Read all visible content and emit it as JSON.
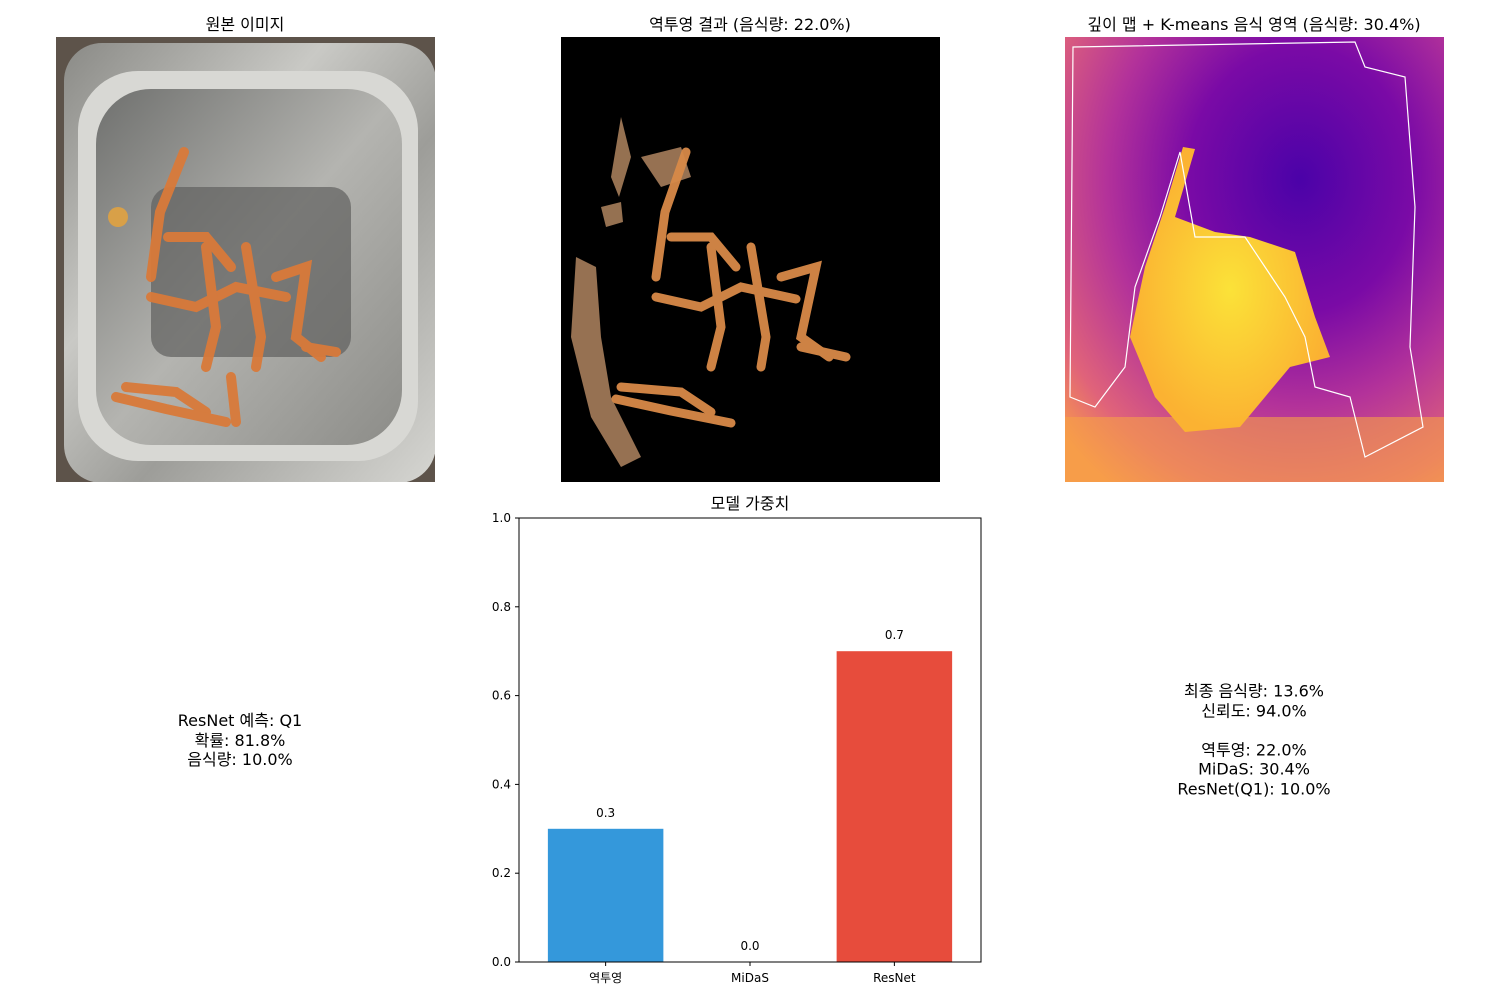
{
  "panels": {
    "original": {
      "title": "원본 이미지"
    },
    "backprojection": {
      "title": "역투영 결과 (음식량: 22.0%)"
    },
    "depth": {
      "title": "깊이 맵 + K-means 음식 영역 (음식량: 30.4%)"
    }
  },
  "resnet_info": {
    "lines": [
      "ResNet 예측: Q1",
      "확률: 81.8%",
      "음식량: 10.0%"
    ]
  },
  "final_info": {
    "lines": [
      "최종 음식량: 13.6%",
      "신뢰도: 94.0%",
      "",
      "역투영: 22.0%",
      "MiDaS: 30.4%",
      "ResNet(Q1): 10.0%"
    ]
  },
  "chart_data": {
    "type": "bar",
    "title": "모델 가중치",
    "categories": [
      "역투영",
      "MiDaS",
      "ResNet"
    ],
    "values": [
      0.3,
      0.0,
      0.7
    ],
    "value_labels": [
      "0.3",
      "0.0",
      "0.7"
    ],
    "colors": [
      "#3498db",
      "#2ecc71",
      "#e74c3c"
    ],
    "ylim": [
      0,
      1.0
    ],
    "yticks": [
      0.0,
      0.2,
      0.4,
      0.6,
      0.8,
      1.0
    ],
    "ytick_labels": [
      "0.0",
      "0.2",
      "0.4",
      "0.6",
      "0.8",
      "1.0"
    ],
    "xlabel": "",
    "ylabel": "",
    "grid": false
  }
}
